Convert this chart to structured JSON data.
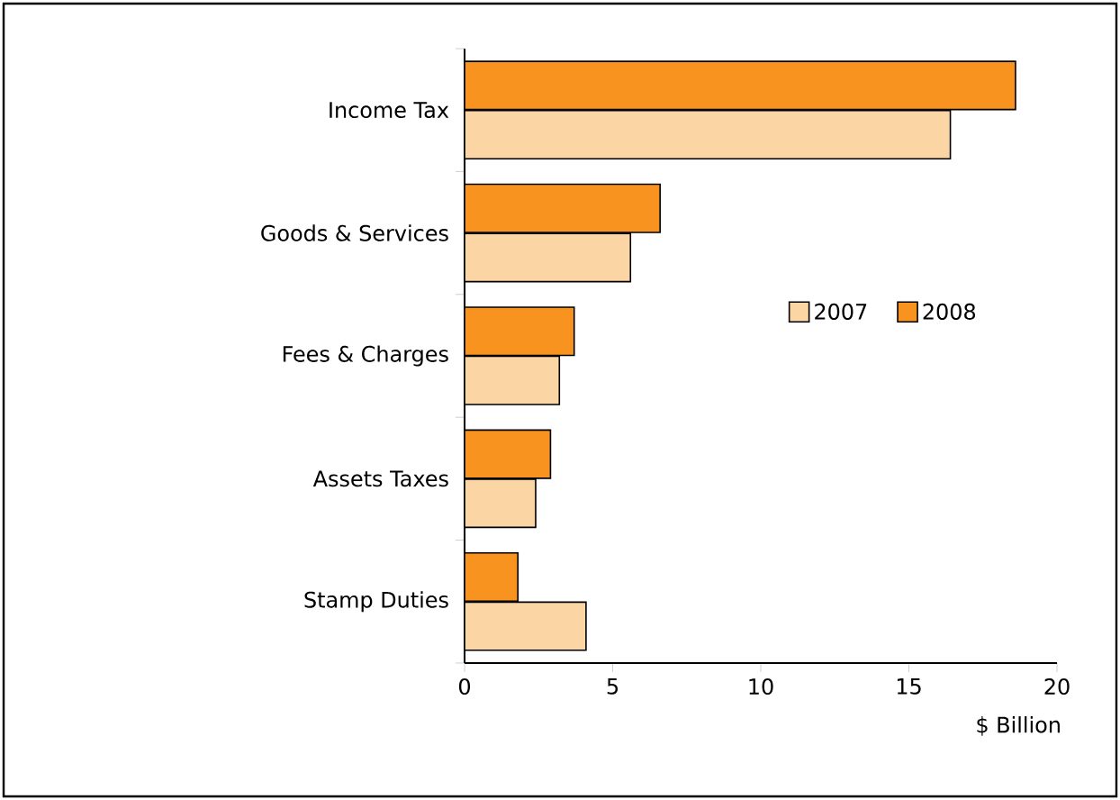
{
  "chart_data": {
    "type": "bar",
    "orientation": "horizontal",
    "xlabel": "$ Billion",
    "categories": [
      "Income Tax",
      "Goods & Services",
      "Fees & Charges",
      "Assets Taxes",
      "Stamp Duties"
    ],
    "series": [
      {
        "name": "2007",
        "color": "#fcd5a5",
        "values": [
          16.4,
          5.6,
          3.2,
          2.4,
          4.1
        ]
      },
      {
        "name": "2008",
        "color": "#f7931e",
        "values": [
          18.6,
          6.6,
          3.7,
          2.9,
          1.8
        ]
      }
    ],
    "xlim": [
      0,
      20
    ],
    "xticks": [
      0,
      5,
      10,
      15,
      20
    ],
    "legend": "right",
    "grid": false
  }
}
